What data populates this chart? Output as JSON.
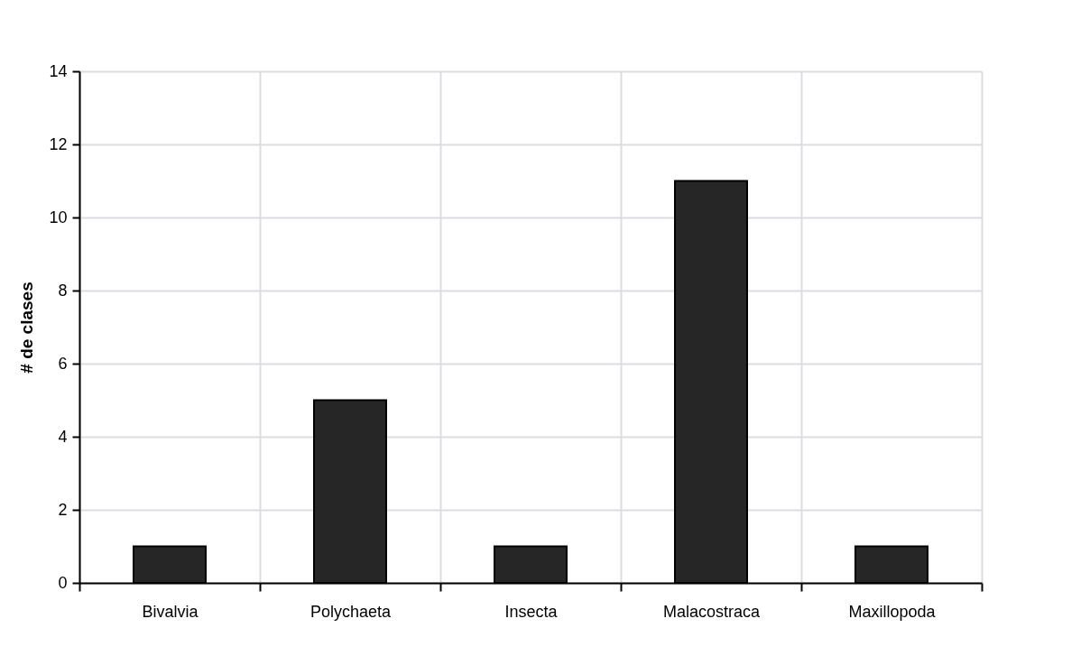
{
  "chart_data": {
    "type": "bar",
    "ylabel": "# de clases",
    "categories": [
      "Bivalvia",
      "Polychaeta",
      "Insecta",
      "Malacostraca",
      "Maxillopoda"
    ],
    "values": [
      1,
      5,
      1,
      11,
      1
    ],
    "color": "#262626",
    "ylim": [
      0,
      14
    ],
    "yticks": [
      0,
      2,
      4,
      6,
      8,
      10,
      12,
      14
    ],
    "grid": true
  }
}
